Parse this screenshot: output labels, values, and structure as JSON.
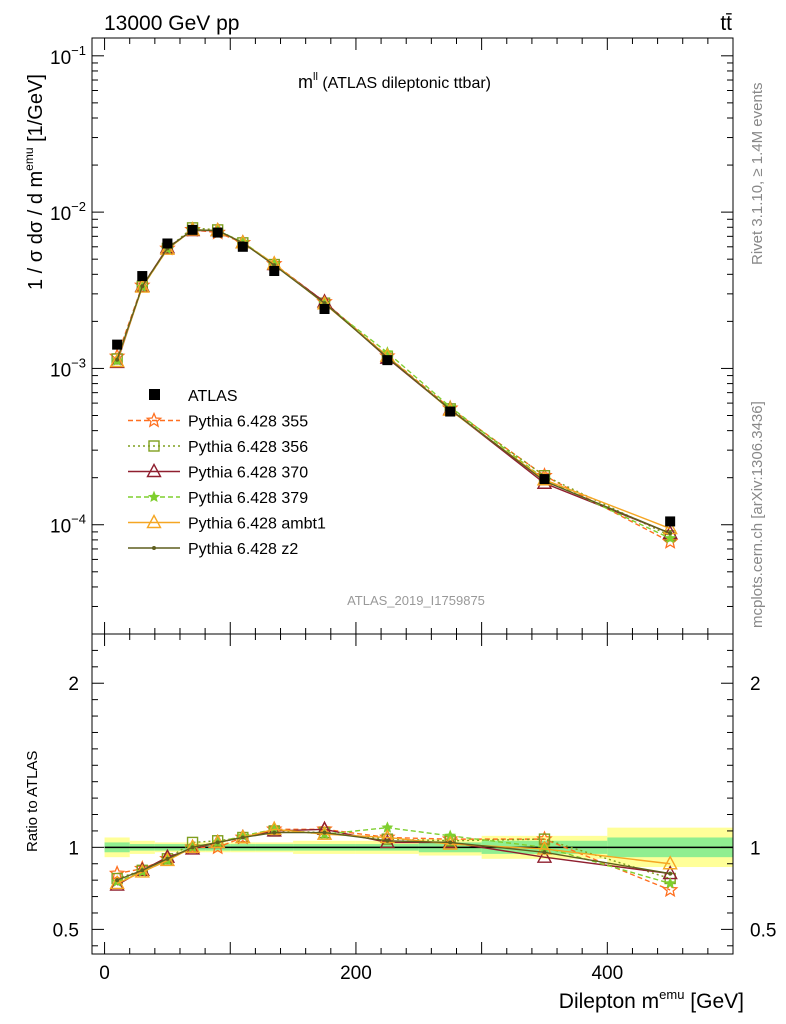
{
  "header": {
    "energy_label": "13000 GeV pp",
    "process_label": "tt̄"
  },
  "side_labels": {
    "rivet": "Rivet 3.1.10, ≥ 1.4M events",
    "mcplots": "mcplots.cern.ch [arXiv:1306.3436]"
  },
  "colors": {
    "data": "#000000",
    "p355": "#ff6f1f",
    "p356": "#7f9f1f",
    "p370": "#8f1f2f",
    "p379": "#7fcf2f",
    "ambt1": "#f5a623",
    "z2": "#5f5f1f",
    "band_inner": "#90ee90",
    "band_outer": "#ffff99"
  },
  "chart_data": {
    "type": "line",
    "title": "m",
    "title_sup": "ll",
    "title_suffix": " (ATLAS dileptonic ttbar)",
    "analysis_label": "ATLAS_2019_I1759875",
    "ylabel": "1 / σ  dσ / d m",
    "ylabel_sup": "emu",
    "ylabel_unit": " [1/GeV]",
    "xlabel": "Dilepton m",
    "xlabel_sup": "emu",
    "xlabel_unit": " [GeV]",
    "ratio_ylabel": "Ratio to ATLAS",
    "xlim": [
      -10,
      500
    ],
    "ylim": [
      2e-05,
      0.13
    ],
    "yscale": "log",
    "ratio_ylim": [
      0.35,
      2.3
    ],
    "x_ticks": [
      0,
      200,
      400
    ],
    "ratio_ticks": [
      {
        "v": 0.5,
        "label": "0.5"
      },
      {
        "v": 1,
        "label": "1"
      },
      {
        "v": 2,
        "label": "2"
      }
    ],
    "y_ticks": [
      {
        "v": 0.1,
        "base": "10",
        "exp": "−1"
      },
      {
        "v": 0.01,
        "base": "10",
        "exp": "−2"
      },
      {
        "v": 0.001,
        "base": "10",
        "exp": "−3"
      },
      {
        "v": 0.0001,
        "base": "10",
        "exp": "−4"
      }
    ],
    "x": [
      10,
      30,
      50,
      70,
      90,
      110,
      135,
      175,
      225,
      275,
      350,
      450
    ],
    "bin_edges": [
      0,
      20,
      40,
      60,
      80,
      100,
      120,
      150,
      200,
      250,
      300,
      400,
      500
    ],
    "data": {
      "name": "ATLAS",
      "values": [
        0.00142,
        0.0039,
        0.0063,
        0.0077,
        0.0074,
        0.006,
        0.0042,
        0.0024,
        0.00113,
        0.00053,
        0.000196,
        0.000105
      ],
      "band_inner": [
        0.03,
        0.02,
        0.02,
        0.02,
        0.02,
        0.02,
        0.02,
        0.02,
        0.02,
        0.03,
        0.04,
        0.06
      ],
      "band_outer": [
        0.06,
        0.04,
        0.03,
        0.03,
        0.03,
        0.03,
        0.03,
        0.04,
        0.04,
        0.05,
        0.07,
        0.12
      ]
    },
    "series": [
      {
        "name": "Pythia 6.428 355",
        "color": "#ff6f1f",
        "dash": "5,3",
        "marker": "star",
        "ratio": [
          0.84,
          0.87,
          0.93,
          1.0,
          1.0,
          1.06,
          1.11,
          1.11,
          1.06,
          1.05,
          1.05,
          0.74
        ]
      },
      {
        "name": "Pythia 6.428 356",
        "color": "#7f9f1f",
        "dash": "2,3",
        "marker": "square",
        "ratio": [
          0.81,
          0.86,
          0.93,
          1.03,
          1.04,
          1.06,
          1.1,
          1.09,
          1.05,
          1.04,
          1.05,
          0.81
        ]
      },
      {
        "name": "Pythia 6.428 370",
        "color": "#8f1f2f",
        "dash": "",
        "marker": "triangle",
        "ratio": [
          0.77,
          0.86,
          0.94,
          0.99,
          1.03,
          1.06,
          1.1,
          1.11,
          1.03,
          1.03,
          0.94,
          0.84
        ]
      },
      {
        "name": "Pythia 6.428 379",
        "color": "#7fcf2f",
        "dash": "5,3",
        "marker": "smallstar",
        "ratio": [
          0.79,
          0.85,
          0.92,
          1.0,
          1.03,
          1.07,
          1.11,
          1.08,
          1.12,
          1.07,
          1.0,
          0.78
        ]
      },
      {
        "name": "Pythia 6.428 ambt1",
        "color": "#f5a623",
        "dash": "",
        "marker": "triangle",
        "ratio": [
          0.78,
          0.85,
          0.92,
          1.0,
          1.03,
          1.06,
          1.11,
          1.08,
          1.06,
          1.02,
          0.99,
          0.9
        ]
      },
      {
        "name": "Pythia 6.428 z2",
        "color": "#5f5f1f",
        "dash": "",
        "marker": "dot",
        "ratio": [
          0.8,
          0.86,
          0.93,
          1.0,
          1.03,
          1.06,
          1.09,
          1.09,
          1.04,
          1.03,
          0.97,
          0.84
        ]
      }
    ],
    "legend_placement": "lower-left",
    "grid": false
  }
}
